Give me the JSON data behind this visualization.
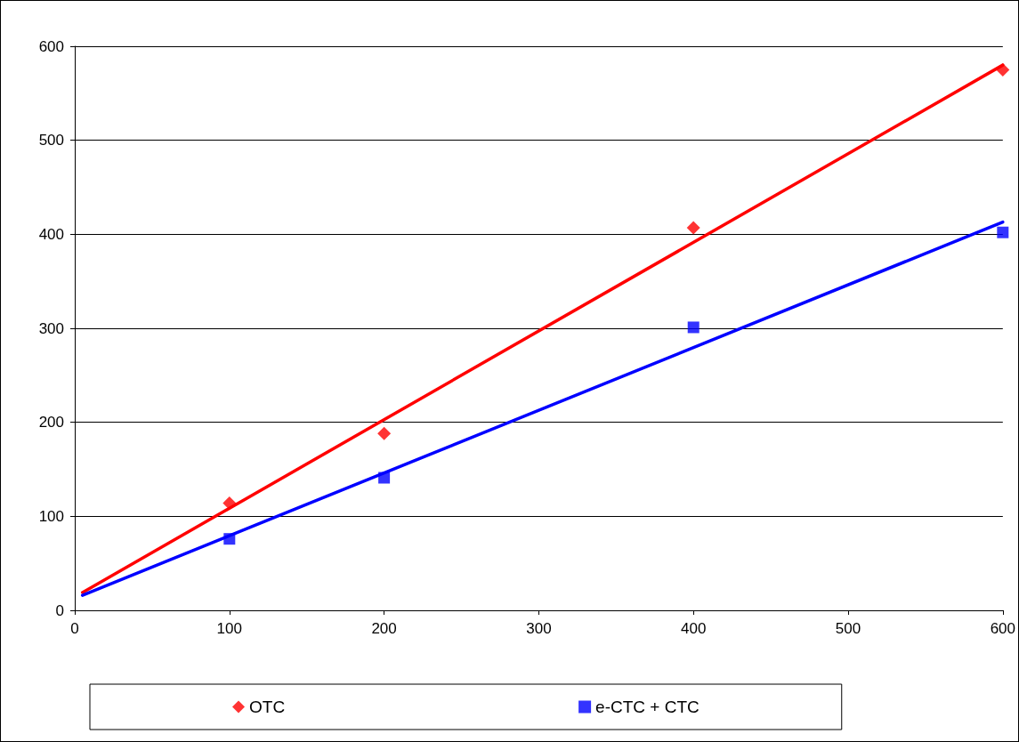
{
  "chart_data": {
    "type": "scatter",
    "xlim": [
      0,
      600
    ],
    "xticks": [
      0,
      100,
      200,
      300,
      400,
      500,
      600
    ],
    "ylim": [
      0,
      600
    ],
    "yticks": [
      0,
      100,
      200,
      300,
      400,
      500,
      600
    ],
    "grid": "y",
    "legend": "bottom",
    "series": [
      {
        "name": "OTC",
        "color": "#ff0000",
        "marker": "diamond",
        "x": [
          100,
          200,
          400,
          600
        ],
        "values": [
          114,
          188,
          407,
          575
        ]
      },
      {
        "name": "e-CTC + CTC",
        "color": "#0000ff",
        "marker": "square",
        "x": [
          100,
          200,
          400,
          600
        ],
        "values": [
          76,
          141,
          301,
          402
        ]
      },
      {
        "type": "line",
        "color": "#ff0000",
        "marker": "none",
        "line_style": "solid",
        "x": [
          5,
          600
        ],
        "values": [
          19,
          580
        ]
      },
      {
        "type": "line",
        "color": "#0000ff",
        "marker": "none",
        "line_style": "solid",
        "x": [
          5,
          600
        ],
        "values": [
          16,
          413
        ]
      }
    ]
  }
}
